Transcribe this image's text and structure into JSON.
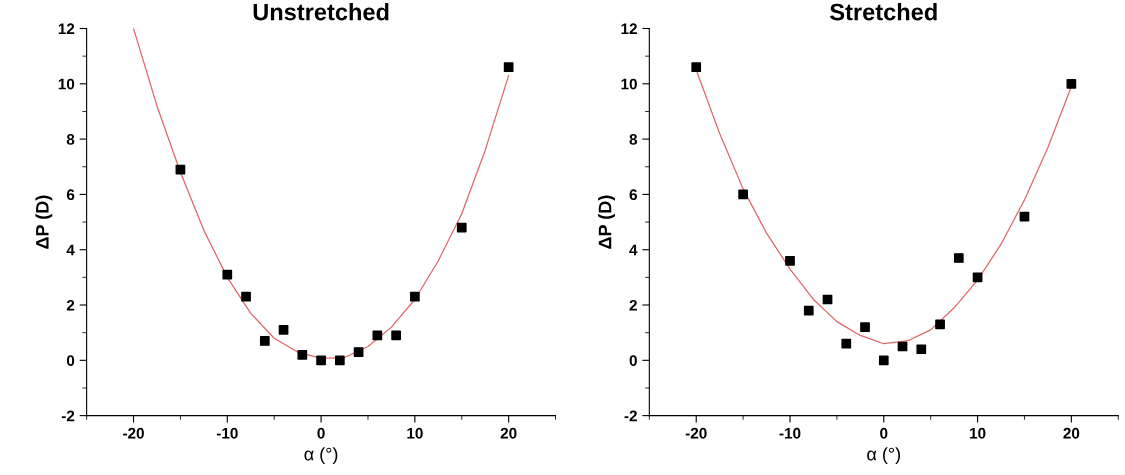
{
  "chart_data": [
    {
      "type": "scatter",
      "title": "Unstretched",
      "xlabel": "α (°)",
      "ylabel": "ΔP (D)",
      "xlim": [
        -25,
        25
      ],
      "xticks": [
        -20,
        -10,
        0,
        10,
        20
      ],
      "ylim": [
        -2,
        12
      ],
      "yticks": [
        -2,
        0,
        2,
        4,
        6,
        8,
        10,
        12
      ],
      "grid": false,
      "legend": false,
      "series": [
        {
          "marker": "square",
          "color": "#000000",
          "x": [
            -15,
            -10,
            -8,
            -6,
            -4,
            -2,
            0,
            2,
            4,
            6,
            8,
            10,
            15,
            20
          ],
          "values": [
            6.9,
            3.1,
            2.3,
            0.7,
            1.1,
            0.2,
            0,
            0,
            0.3,
            0.9,
            0.9,
            2.3,
            4.8,
            10.6
          ]
        },
        {
          "type": "line",
          "marker": "none",
          "color": "#e06666",
          "x": [
            -20,
            -17.5,
            -15,
            -12.5,
            -10,
            -7.5,
            -5,
            -2.5,
            0,
            2.5,
            5,
            7.5,
            10,
            12.5,
            15,
            17.5,
            20
          ],
          "values": [
            12.0,
            9.2,
            6.8,
            4.7,
            3.0,
            1.7,
            0.8,
            0.3,
            0.07,
            0.1,
            0.5,
            1.2,
            2.2,
            3.6,
            5.3,
            7.6,
            10.3
          ]
        }
      ]
    },
    {
      "type": "scatter",
      "title": "Stretched",
      "xlabel": "α (°)",
      "ylabel": "ΔP (D)",
      "xlim": [
        -25,
        25
      ],
      "xticks": [
        -20,
        -10,
        0,
        10,
        20
      ],
      "ylim": [
        -2,
        12
      ],
      "yticks": [
        -2,
        0,
        2,
        4,
        6,
        8,
        10,
        12
      ],
      "grid": false,
      "legend": false,
      "series": [
        {
          "marker": "square",
          "color": "#000000",
          "x": [
            -20,
            -15,
            -10,
            -8,
            -6,
            -4,
            -2,
            0,
            2,
            4,
            6,
            8,
            10,
            15,
            20
          ],
          "values": [
            10.6,
            6.0,
            3.6,
            1.8,
            2.2,
            0.6,
            1.2,
            0,
            0.5,
            0.4,
            1.3,
            3.7,
            3.0,
            5.2,
            10.0
          ]
        },
        {
          "type": "line",
          "marker": "none",
          "color": "#e06666",
          "x": [
            -20,
            -17.5,
            -15,
            -12.5,
            -10,
            -7.5,
            -5,
            -2.5,
            0,
            2.5,
            5,
            7.5,
            10,
            12.5,
            15,
            17.5,
            20
          ],
          "values": [
            10.5,
            8.2,
            6.2,
            4.6,
            3.3,
            2.2,
            1.4,
            0.9,
            0.6,
            0.7,
            1.1,
            1.9,
            2.9,
            4.2,
            5.8,
            7.7,
            9.9
          ]
        }
      ]
    }
  ]
}
